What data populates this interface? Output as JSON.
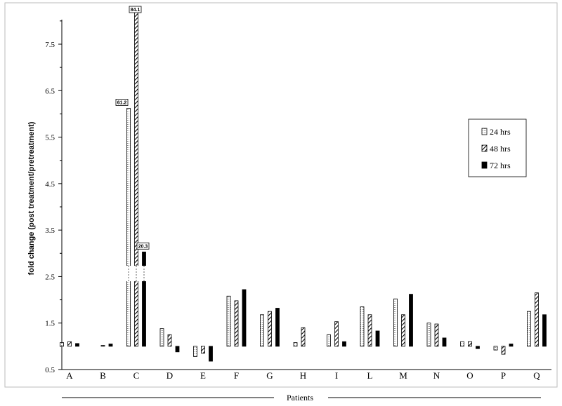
{
  "chart_data": {
    "type": "bar",
    "ylabel": "fold change (post treatment/pretreatment)",
    "xlabel": "Patients",
    "categories": [
      "A",
      "B",
      "C",
      "D",
      "E",
      "F",
      "G",
      "H",
      "I",
      "L",
      "M",
      "N",
      "O",
      "P",
      "Q"
    ],
    "yticks": [
      "0.5",
      "1.5",
      "2.5",
      "3.5",
      "4.5",
      "5.5",
      "6.5",
      "7.5"
    ],
    "ylim": [
      0.5,
      8.2
    ],
    "baseline": 1.0,
    "grid": false,
    "legend_position": "right",
    "series": [
      {
        "name": "24 hrs",
        "style": "dotted",
        "color": "#ffffff",
        "values": [
          1.08,
          null,
          6.12,
          1.38,
          0.78,
          2.08,
          1.68,
          1.08,
          1.25,
          1.85,
          2.02,
          1.5,
          1.1,
          0.92,
          1.75
        ]
      },
      {
        "name": "48 hrs",
        "style": "hatched",
        "color": "#ffffff",
        "values": [
          1.1,
          1.02,
          8.2,
          1.25,
          0.85,
          1.98,
          1.75,
          1.4,
          1.53,
          1.68,
          1.68,
          1.48,
          1.1,
          0.83,
          2.15
        ]
      },
      {
        "name": "72 hrs",
        "style": "solid",
        "color": "#000000",
        "values": [
          1.06,
          1.05,
          3.03,
          0.88,
          0.68,
          2.22,
          1.82,
          null,
          1.1,
          1.33,
          2.12,
          1.18,
          0.95,
          1.05,
          1.68
        ]
      }
    ],
    "annotations": [
      {
        "category": "C",
        "series": "24 hrs",
        "text": "61.2"
      },
      {
        "category": "C",
        "series": "48 hrs",
        "text": "84.1"
      },
      {
        "category": "C",
        "series": "72 hrs",
        "text": "20.3"
      }
    ],
    "axis_break": {
      "category": "C",
      "at_value": 2.4
    }
  }
}
